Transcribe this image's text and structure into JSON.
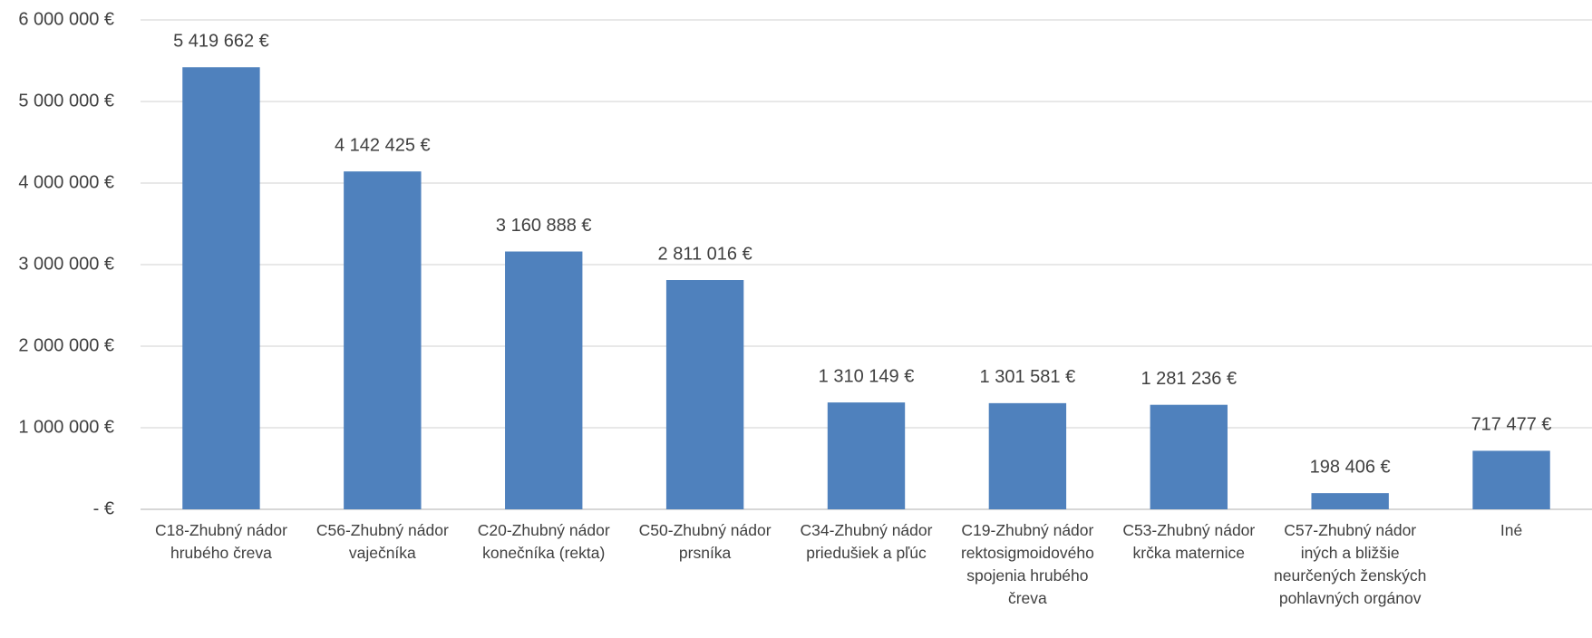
{
  "chart_data": {
    "type": "bar",
    "categories": [
      "C18-Zhubný nádor hrubého čreva",
      "C56-Zhubný nádor vaječníka",
      "C20-Zhubný nádor konečníka (rekta)",
      "C50-Zhubný nádor prsníka",
      "C34-Zhubný nádor priedušiek a pľúc",
      "C19-Zhubný nádor rektosigmoidového spojenia hrubého čreva",
      "C53-Zhubný nádor krčka maternice",
      "C57-Zhubný nádor iných a bližšie neurčených ženských pohlavných orgánov",
      "Iné"
    ],
    "values": [
      5419662,
      4142425,
      3160888,
      2811016,
      1310149,
      1301581,
      1281236,
      198406,
      717477
    ],
    "value_labels": [
      "5 419 662 €",
      "4 142 425 €",
      "3 160 888 €",
      "2 811 016 €",
      "1 310 149 €",
      "1 301 581 €",
      "1 281 236 €",
      "198 406 €",
      "717 477 €"
    ],
    "color": "#4f81bd",
    "ylim": [
      0,
      6000000
    ],
    "yticks": [
      {
        "value": 0,
        "label": "-  €"
      },
      {
        "value": 1000000,
        "label": "1 000 000 €"
      },
      {
        "value": 2000000,
        "label": "2 000 000 €"
      },
      {
        "value": 3000000,
        "label": "3 000 000 €"
      },
      {
        "value": 4000000,
        "label": "4 000 000 €"
      },
      {
        "value": 5000000,
        "label": "5 000 000 €"
      },
      {
        "value": 6000000,
        "label": "6 000 000 €"
      }
    ],
    "grid": true
  }
}
